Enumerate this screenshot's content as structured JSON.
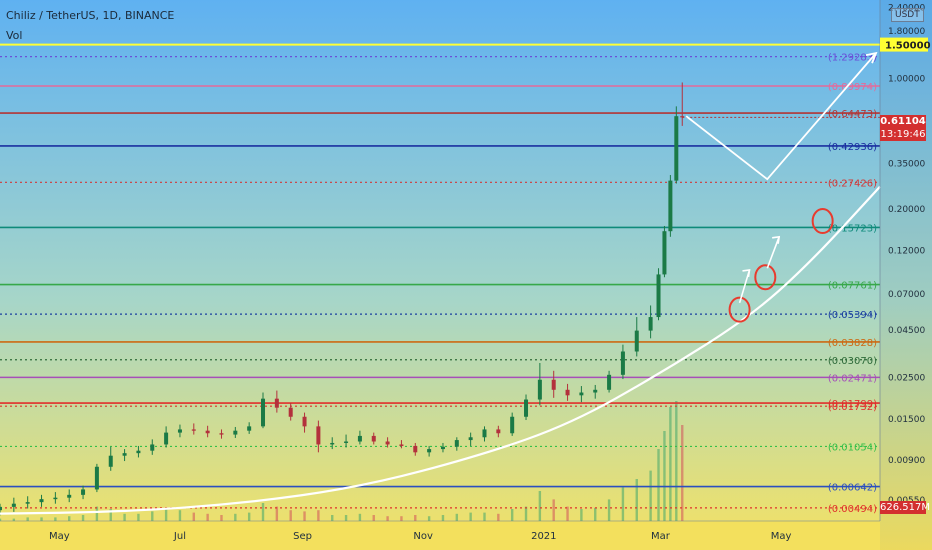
{
  "header": {
    "title": "Chiliz / TetherUS, 1D, BINANCE",
    "vol_label": "Vol",
    "currency": "USDT"
  },
  "current": {
    "price": "0.61104",
    "countdown": "13:19:46",
    "volume": "626.517M"
  },
  "colors": {
    "bg_top": "#5fb1f1",
    "bg_mid": "#a7d6c8",
    "bg_bottom": "#f5e262",
    "candle_up": "#1b7a46",
    "candle_down": "#b3313c",
    "curve": "#ffffff",
    "circle": "#e83b2e",
    "price_tag": "#d32f2f"
  },
  "chart_data": {
    "type": "candlestick",
    "title": "Chiliz / TetherUS, 1D, BINANCE",
    "yscale": "log",
    "ylim": [
      0.0042,
      2.6
    ],
    "xlim": [
      "2020-04-01",
      "2021-06-20"
    ],
    "y_ticks": [
      "2.40000",
      "1.80000",
      "1.00000",
      "0.35000",
      "0.20000",
      "0.12000",
      "0.07000",
      "0.04500",
      "0.02500",
      "0.01500",
      "0.00900",
      "0.00550"
    ],
    "x_ticks": [
      {
        "date": "2020-05-01",
        "label": "May"
      },
      {
        "date": "2020-07-01",
        "label": "Jul"
      },
      {
        "date": "2020-09-01",
        "label": "Sep"
      },
      {
        "date": "2020-11-01",
        "label": "Nov"
      },
      {
        "date": "2021-01-01",
        "label": "2021"
      },
      {
        "date": "2021-03-01",
        "label": "Mar"
      },
      {
        "date": "2021-05-01",
        "label": "May"
      }
    ],
    "price_line": {
      "label": "1.50000",
      "value": 1.5,
      "color": "#ffff33"
    },
    "fib_levels": [
      {
        "label": "(1.29283)",
        "value": 1.29283,
        "color": "#6a4fd8",
        "style": "dotted"
      },
      {
        "label": "(0.89974)",
        "value": 0.89974,
        "color": "#e46a9a",
        "style": "solid"
      },
      {
        "label": "(0.64473)",
        "value": 0.64473,
        "color": "#b33434",
        "style": "solid"
      },
      {
        "label": "(0.42936)",
        "value": 0.42936,
        "color": "#1a2fa0",
        "style": "solid"
      },
      {
        "label": "(0.27426)",
        "value": 0.27426,
        "color": "#d03a3a",
        "style": "dotted"
      },
      {
        "label": "(0.15723)",
        "value": 0.15723,
        "color": "#0f8a7a",
        "style": "solid"
      },
      {
        "label": "(0.07761)",
        "value": 0.07761,
        "color": "#37a84a",
        "style": "solid"
      },
      {
        "label": "(0.05394)",
        "value": 0.05394,
        "color": "#1a3fa0",
        "style": "dotted"
      },
      {
        "label": "(0.03828)",
        "value": 0.03828,
        "color": "#cc6a14",
        "style": "solid"
      },
      {
        "label": "(0.03070)",
        "value": 0.0307,
        "color": "#2f6b3a",
        "style": "dotted"
      },
      {
        "label": "(0.02471)",
        "value": 0.02471,
        "color": "#a64fb8",
        "style": "solid"
      },
      {
        "label": "(0.01799)",
        "value": 0.01799,
        "color": "#e0302c",
        "style": "solid"
      },
      {
        "label": "(0.01732)",
        "value": 0.01732,
        "color": "#e0302c",
        "style": "dotted"
      },
      {
        "label": "(0.01054)",
        "value": 0.01054,
        "color": "#35c04a",
        "style": "dotted"
      },
      {
        "label": "(0.00642)",
        "value": 0.00642,
        "color": "#2b4fc0",
        "style": "solid"
      },
      {
        "label": "(0.00494)",
        "value": 0.00494,
        "color": "#e0302c",
        "style": "dotted"
      }
    ],
    "series": [
      {
        "type": "candlestick",
        "points": [
          {
            "date": "2020-04-01",
            "o": 0.0048,
            "h": 0.0052,
            "l": 0.0045,
            "c": 0.005
          },
          {
            "date": "2020-04-08",
            "o": 0.005,
            "h": 0.0056,
            "l": 0.0047,
            "c": 0.0052
          },
          {
            "date": "2020-04-15",
            "o": 0.0052,
            "h": 0.0057,
            "l": 0.0049,
            "c": 0.0053
          },
          {
            "date": "2020-04-22",
            "o": 0.0053,
            "h": 0.0058,
            "l": 0.005,
            "c": 0.0055
          },
          {
            "date": "2020-04-29",
            "o": 0.0055,
            "h": 0.006,
            "l": 0.0052,
            "c": 0.0056
          },
          {
            "date": "2020-05-06",
            "o": 0.0056,
            "h": 0.0062,
            "l": 0.0053,
            "c": 0.0058
          },
          {
            "date": "2020-05-13",
            "o": 0.0058,
            "h": 0.0065,
            "l": 0.0055,
            "c": 0.0062
          },
          {
            "date": "2020-05-20",
            "o": 0.0062,
            "h": 0.0085,
            "l": 0.006,
            "c": 0.0082
          },
          {
            "date": "2020-05-27",
            "o": 0.0082,
            "h": 0.0105,
            "l": 0.0078,
            "c": 0.0094
          },
          {
            "date": "2020-06-03",
            "o": 0.0094,
            "h": 0.0102,
            "l": 0.0088,
            "c": 0.0097
          },
          {
            "date": "2020-06-10",
            "o": 0.0097,
            "h": 0.0106,
            "l": 0.0092,
            "c": 0.01
          },
          {
            "date": "2020-06-17",
            "o": 0.01,
            "h": 0.0115,
            "l": 0.0095,
            "c": 0.0108
          },
          {
            "date": "2020-06-24",
            "o": 0.0108,
            "h": 0.0135,
            "l": 0.0104,
            "c": 0.0125
          },
          {
            "date": "2020-07-01",
            "o": 0.0125,
            "h": 0.0138,
            "l": 0.0118,
            "c": 0.013
          },
          {
            "date": "2020-07-08",
            "o": 0.013,
            "h": 0.014,
            "l": 0.0122,
            "c": 0.0128
          },
          {
            "date": "2020-07-15",
            "o": 0.0128,
            "h": 0.0136,
            "l": 0.0118,
            "c": 0.0124
          },
          {
            "date": "2020-07-22",
            "o": 0.0124,
            "h": 0.013,
            "l": 0.0116,
            "c": 0.0122
          },
          {
            "date": "2020-07-29",
            "o": 0.0122,
            "h": 0.0134,
            "l": 0.0117,
            "c": 0.0128
          },
          {
            "date": "2020-08-05",
            "o": 0.0128,
            "h": 0.0142,
            "l": 0.0123,
            "c": 0.0135
          },
          {
            "date": "2020-08-12",
            "o": 0.0135,
            "h": 0.0205,
            "l": 0.0132,
            "c": 0.019
          },
          {
            "date": "2020-08-19",
            "o": 0.019,
            "h": 0.021,
            "l": 0.016,
            "c": 0.017
          },
          {
            "date": "2020-08-26",
            "o": 0.017,
            "h": 0.018,
            "l": 0.0145,
            "c": 0.0152
          },
          {
            "date": "2020-09-02",
            "o": 0.0152,
            "h": 0.016,
            "l": 0.0125,
            "c": 0.0135
          },
          {
            "date": "2020-09-09",
            "o": 0.0135,
            "h": 0.0145,
            "l": 0.0098,
            "c": 0.0108
          },
          {
            "date": "2020-09-16",
            "o": 0.0108,
            "h": 0.0118,
            "l": 0.0102,
            "c": 0.011
          },
          {
            "date": "2020-09-23",
            "o": 0.011,
            "h": 0.0122,
            "l": 0.0104,
            "c": 0.0112
          },
          {
            "date": "2020-09-30",
            "o": 0.0112,
            "h": 0.0128,
            "l": 0.0108,
            "c": 0.012
          },
          {
            "date": "2020-10-07",
            "o": 0.012,
            "h": 0.0125,
            "l": 0.0108,
            "c": 0.0112
          },
          {
            "date": "2020-10-14",
            "o": 0.0112,
            "h": 0.0118,
            "l": 0.0104,
            "c": 0.0108
          },
          {
            "date": "2020-10-21",
            "o": 0.0108,
            "h": 0.0114,
            "l": 0.0103,
            "c": 0.0106
          },
          {
            "date": "2020-10-28",
            "o": 0.0106,
            "h": 0.011,
            "l": 0.0094,
            "c": 0.0098
          },
          {
            "date": "2020-11-04",
            "o": 0.0098,
            "h": 0.0106,
            "l": 0.0093,
            "c": 0.0102
          },
          {
            "date": "2020-11-11",
            "o": 0.0102,
            "h": 0.011,
            "l": 0.0098,
            "c": 0.0105
          },
          {
            "date": "2020-11-18",
            "o": 0.0105,
            "h": 0.0118,
            "l": 0.01,
            "c": 0.0114
          },
          {
            "date": "2020-11-25",
            "o": 0.0114,
            "h": 0.0125,
            "l": 0.0106,
            "c": 0.0118
          },
          {
            "date": "2020-12-02",
            "o": 0.0118,
            "h": 0.0135,
            "l": 0.0112,
            "c": 0.013
          },
          {
            "date": "2020-12-09",
            "o": 0.013,
            "h": 0.0136,
            "l": 0.0118,
            "c": 0.0124
          },
          {
            "date": "2020-12-16",
            "o": 0.0124,
            "h": 0.016,
            "l": 0.012,
            "c": 0.0152
          },
          {
            "date": "2020-12-23",
            "o": 0.0152,
            "h": 0.02,
            "l": 0.0146,
            "c": 0.0188
          },
          {
            "date": "2020-12-30",
            "o": 0.0188,
            "h": 0.0295,
            "l": 0.0175,
            "c": 0.024
          },
          {
            "date": "2021-01-06",
            "o": 0.024,
            "h": 0.0268,
            "l": 0.0192,
            "c": 0.0212
          },
          {
            "date": "2021-01-13",
            "o": 0.0212,
            "h": 0.0228,
            "l": 0.0185,
            "c": 0.0198
          },
          {
            "date": "2021-01-20",
            "o": 0.0198,
            "h": 0.0222,
            "l": 0.0182,
            "c": 0.0205
          },
          {
            "date": "2021-01-27",
            "o": 0.0205,
            "h": 0.0225,
            "l": 0.019,
            "c": 0.0212
          },
          {
            "date": "2021-02-03",
            "o": 0.0212,
            "h": 0.0268,
            "l": 0.0205,
            "c": 0.0255
          },
          {
            "date": "2021-02-10",
            "o": 0.0255,
            "h": 0.037,
            "l": 0.0242,
            "c": 0.034
          },
          {
            "date": "2021-02-17",
            "o": 0.034,
            "h": 0.052,
            "l": 0.032,
            "c": 0.044
          },
          {
            "date": "2021-02-24",
            "o": 0.044,
            "h": 0.06,
            "l": 0.04,
            "c": 0.052
          },
          {
            "date": "2021-02-28",
            "o": 0.052,
            "h": 0.095,
            "l": 0.05,
            "c": 0.088
          },
          {
            "date": "2021-03-03",
            "o": 0.088,
            "h": 0.16,
            "l": 0.085,
            "c": 0.15
          },
          {
            "date": "2021-03-06",
            "o": 0.15,
            "h": 0.3,
            "l": 0.14,
            "c": 0.28
          },
          {
            "date": "2021-03-09",
            "o": 0.28,
            "h": 0.7,
            "l": 0.27,
            "c": 0.62
          },
          {
            "date": "2021-03-12",
            "o": 0.62,
            "h": 0.94,
            "l": 0.55,
            "c": 0.61104
          }
        ]
      }
    ],
    "volume_series": [
      0.02,
      0.02,
      0.03,
      0.03,
      0.03,
      0.04,
      0.05,
      0.12,
      0.1,
      0.06,
      0.06,
      0.08,
      0.11,
      0.09,
      0.07,
      0.06,
      0.05,
      0.06,
      0.07,
      0.15,
      0.12,
      0.09,
      0.08,
      0.09,
      0.05,
      0.05,
      0.06,
      0.05,
      0.04,
      0.04,
      0.05,
      0.04,
      0.05,
      0.06,
      0.07,
      0.07,
      0.06,
      0.1,
      0.12,
      0.25,
      0.18,
      0.12,
      0.1,
      0.11,
      0.18,
      0.28,
      0.35,
      0.42,
      0.6,
      0.75,
      0.95,
      1.0,
      0.8
    ]
  }
}
